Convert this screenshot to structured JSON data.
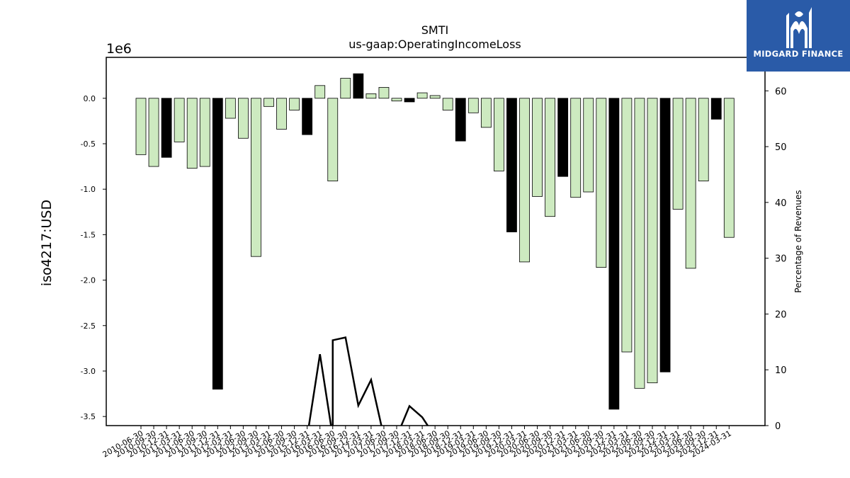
{
  "chart_data": {
    "type": "bar",
    "title": "SMTI",
    "subtitle": "us-gaap:OperatingIncomeLoss",
    "ylabel": "iso4217:USD",
    "y_offset_label": "1e6",
    "y2label": "Percentage of Revenues",
    "ylim": [
      -3.6,
      0.45
    ],
    "y_ticks": [
      "0.0",
      "-0.5",
      "-1.0",
      "-1.5",
      "-2.0",
      "-2.5",
      "-3.0",
      "-3.5"
    ],
    "y2lim": [
      0,
      66
    ],
    "y2_ticks": [
      "0",
      "10",
      "20",
      "30",
      "40",
      "50",
      "60"
    ],
    "grid": false,
    "categories": [
      "2010-06-30",
      "2010-09-30",
      "2010-12-31",
      "2011-03-31",
      "2011-06-30",
      "2011-09-30",
      "2011-12-31",
      "2012-03-31",
      "2012-06-30",
      "2012-09-30",
      "2013-03-31",
      "2015-06-30",
      "2015-09-30",
      "2015-12-31",
      "2016-03-31",
      "2016-06-30",
      "2016-09-30",
      "2016-12-31",
      "2017-03-31",
      "2017-06-30",
      "2017-09-30",
      "2017-12-31",
      "2018-03-31",
      "2018-06-30",
      "2018-09-30",
      "2018-12-31",
      "2019-03-31",
      "2019-06-30",
      "2019-09-30",
      "2019-12-31",
      "2020-03-31",
      "2020-06-30",
      "2020-09-30",
      "2020-12-31",
      "2021-03-31",
      "2021-06-30",
      "2021-09-30",
      "2021-12-31",
      "2022-03-31",
      "2022-06-30",
      "2022-09-30",
      "2022-12-31",
      "2023-03-31",
      "2023-06-30",
      "2023-09-30",
      "2023-12-31",
      "2024-03-31"
    ],
    "series": [
      {
        "values": [
          -0.62,
          -0.75,
          -0.65,
          -0.48,
          -0.77,
          -0.75,
          -3.2,
          -0.22,
          -0.44,
          -1.74,
          -0.09,
          -0.34,
          -0.13,
          -0.4,
          0.14,
          -0.91,
          0.22,
          0.27,
          0.05,
          0.12,
          -0.03,
          -0.04,
          0.06,
          0.03,
          -0.13,
          -0.47,
          -0.16,
          -0.32,
          -0.8,
          -1.47,
          -1.8,
          -1.08,
          -1.3,
          -0.86,
          -1.09,
          -1.03,
          -1.86,
          -3.42,
          -2.79,
          -3.19,
          -3.13,
          -3.01,
          -1.22,
          -1.87,
          -0.91,
          -0.23,
          -1.53
        ],
        "highlight": [
          false,
          false,
          true,
          false,
          false,
          false,
          true,
          false,
          false,
          false,
          false,
          false,
          false,
          true,
          false,
          false,
          false,
          true,
          false,
          false,
          false,
          true,
          false,
          false,
          false,
          true,
          false,
          false,
          false,
          true,
          false,
          false,
          false,
          true,
          false,
          false,
          false,
          true,
          false,
          false,
          false,
          true,
          false,
          false,
          false,
          true,
          false
        ]
      }
    ],
    "line": {
      "axis": "y2",
      "points": [
        {
          "x": "2015-12-31",
          "y": -2
        },
        {
          "x": "2016-03-31",
          "y": 12.8
        },
        {
          "x": "2016-06-30",
          "y": -2
        },
        {
          "x": "2016-06-30",
          "y": 15.3
        },
        {
          "x": "2016-09-30",
          "y": 15.8
        },
        {
          "x": "2016-12-31",
          "y": 3.6
        },
        {
          "x": "2017-03-31",
          "y": 8.2
        },
        {
          "x": "2017-06-30",
          "y": -2
        },
        {
          "x": "2017-09-30",
          "y": -2
        },
        {
          "x": "2017-12-31",
          "y": 3.5
        },
        {
          "x": "2018-03-31",
          "y": 1.5
        },
        {
          "x": "2018-06-30",
          "y": -2
        }
      ]
    },
    "colors": {
      "bar": "#cdeac0",
      "highlight": "#000000",
      "edge": "#000000",
      "line": "#000000"
    }
  },
  "logo": {
    "text": "MIDGARD FINANCE",
    "background": "#2a5ba8"
  }
}
